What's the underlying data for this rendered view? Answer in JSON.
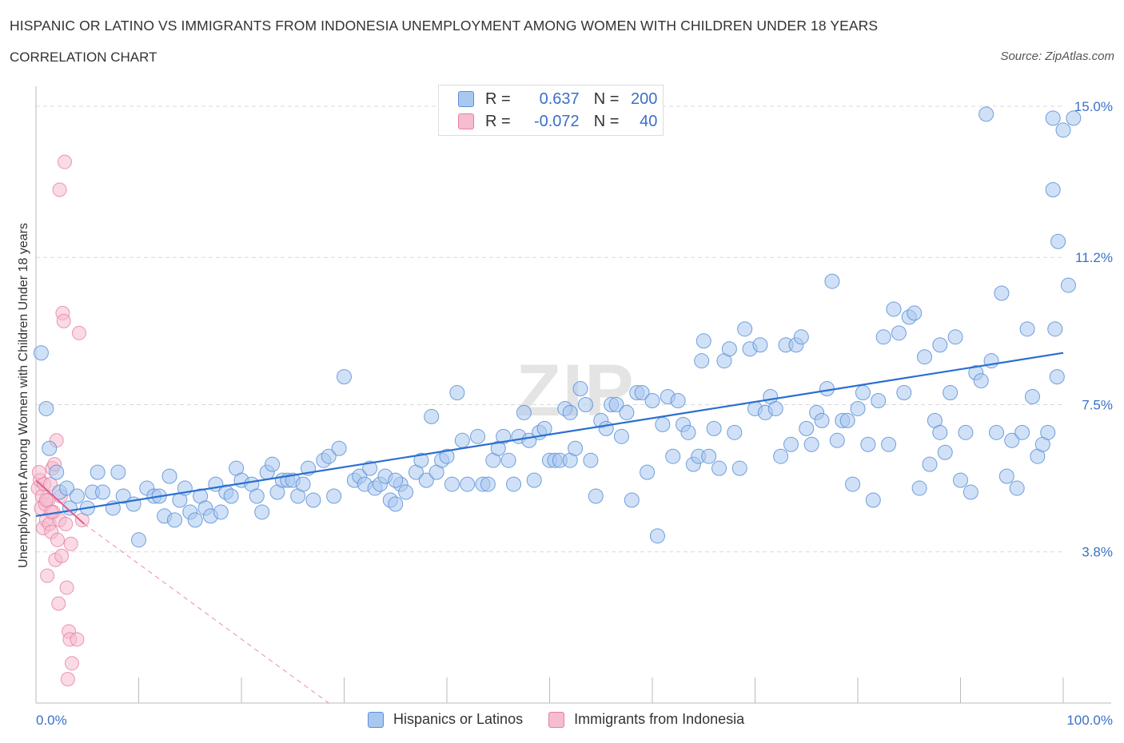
{
  "header": {
    "title": "HISPANIC OR LATINO VS IMMIGRANTS FROM INDONESIA UNEMPLOYMENT AMONG WOMEN WITH CHILDREN UNDER 18 YEARS",
    "subtitle": "CORRELATION CHART",
    "source": "Source: ZipAtlas.com"
  },
  "legend": {
    "rows": [
      {
        "r_label": "R =",
        "r_value": "0.637",
        "n_label": "N =",
        "n_value": "200"
      },
      {
        "r_label": "R =",
        "r_value": "-0.072",
        "n_label": "N =",
        "n_value": "40"
      }
    ]
  },
  "colors": {
    "blue_fill": "#a9c8f0",
    "blue_stroke": "#5b8fd6",
    "blue_line": "#2a6fd0",
    "pink_fill": "#f6bcd0",
    "pink_stroke": "#e57fa0",
    "pink_line": "#e0608a",
    "tick_text": "#3a70c8"
  },
  "chart_data": {
    "type": "scatter",
    "title": "HISPANIC OR LATINO VS IMMIGRANTS FROM INDONESIA UNEMPLOYMENT AMONG WOMEN WITH CHILDREN UNDER 18 YEARS",
    "xlabel": "",
    "ylabel": "Unemployment Among Women with Children Under 18 years",
    "x_tick_labels": [
      "0.0%",
      "100.0%"
    ],
    "y_tick_labels": [
      "3.8%",
      "7.5%",
      "11.2%",
      "15.0%"
    ],
    "y_ticks": [
      3.8,
      7.5,
      11.2,
      15.0
    ],
    "xlim": [
      0,
      100
    ],
    "ylim": [
      0,
      15.3
    ],
    "grid": true,
    "legend_position": "top-center",
    "watermark": "ZIPatlas",
    "series": [
      {
        "name": "Hispanics or Latinos",
        "color": "#a9c8f0",
        "trend": {
          "x": [
            0,
            100
          ],
          "y": [
            4.7,
            8.8
          ]
        },
        "points": [
          [
            0.5,
            8.8
          ],
          [
            1,
            7.4
          ],
          [
            1.3,
            6.4
          ],
          [
            2,
            5.8
          ],
          [
            2.3,
            5.3
          ],
          [
            3,
            5.4
          ],
          [
            3.3,
            4.9
          ],
          [
            4,
            5.2
          ],
          [
            5,
            4.9
          ],
          [
            5.5,
            5.3
          ],
          [
            6,
            5.8
          ],
          [
            6.5,
            5.3
          ],
          [
            7.5,
            4.9
          ],
          [
            8,
            5.8
          ],
          [
            8.5,
            5.2
          ],
          [
            9.5,
            5.0
          ],
          [
            10,
            4.1
          ],
          [
            10.8,
            5.4
          ],
          [
            11.5,
            5.2
          ],
          [
            12,
            5.2
          ],
          [
            12.5,
            4.7
          ],
          [
            13,
            5.7
          ],
          [
            13.5,
            4.6
          ],
          [
            14,
            5.1
          ],
          [
            14.5,
            5.4
          ],
          [
            15,
            4.8
          ],
          [
            15.5,
            4.6
          ],
          [
            16,
            5.2
          ],
          [
            16.5,
            4.9
          ],
          [
            17,
            4.7
          ],
          [
            17.5,
            5.5
          ],
          [
            18,
            4.8
          ],
          [
            18.5,
            5.3
          ],
          [
            19,
            5.2
          ],
          [
            19.5,
            5.9
          ],
          [
            20,
            5.6
          ],
          [
            21,
            5.5
          ],
          [
            21.5,
            5.2
          ],
          [
            22,
            4.8
          ],
          [
            22.5,
            5.8
          ],
          [
            23,
            6.0
          ],
          [
            23.5,
            5.3
          ],
          [
            24,
            5.6
          ],
          [
            24.5,
            5.6
          ],
          [
            25,
            5.6
          ],
          [
            25.5,
            5.2
          ],
          [
            26,
            5.5
          ],
          [
            26.5,
            5.9
          ],
          [
            27,
            5.1
          ],
          [
            28,
            6.1
          ],
          [
            28.5,
            6.2
          ],
          [
            29,
            5.2
          ],
          [
            29.5,
            6.4
          ],
          [
            30,
            8.2
          ],
          [
            31,
            5.6
          ],
          [
            31.5,
            5.7
          ],
          [
            32,
            5.5
          ],
          [
            32.5,
            5.9
          ],
          [
            33,
            5.4
          ],
          [
            33.5,
            5.5
          ],
          [
            34,
            5.7
          ],
          [
            34.5,
            5.1
          ],
          [
            35,
            5.0
          ],
          [
            35.5,
            5.5
          ],
          [
            36,
            5.3
          ],
          [
            37,
            5.8
          ],
          [
            37.5,
            6.1
          ],
          [
            38,
            5.6
          ],
          [
            38.5,
            7.2
          ],
          [
            39,
            5.8
          ],
          [
            39.5,
            6.1
          ],
          [
            40,
            6.2
          ],
          [
            40.5,
            5.5
          ],
          [
            41,
            7.8
          ],
          [
            41.5,
            6.6
          ],
          [
            42,
            5.5
          ],
          [
            43,
            6.7
          ],
          [
            43.5,
            5.5
          ],
          [
            44,
            5.5
          ],
          [
            44.5,
            6.1
          ],
          [
            45,
            6.4
          ],
          [
            45.5,
            6.7
          ],
          [
            46,
            6.1
          ],
          [
            46.5,
            5.5
          ],
          [
            47,
            6.7
          ],
          [
            47.5,
            7.3
          ],
          [
            48,
            6.6
          ],
          [
            48.5,
            5.6
          ],
          [
            49,
            6.8
          ],
          [
            49.5,
            6.9
          ],
          [
            50,
            6.1
          ],
          [
            50.5,
            6.1
          ],
          [
            51,
            6.1
          ],
          [
            51.5,
            7.4
          ],
          [
            52,
            6.1
          ],
          [
            52.5,
            6.4
          ],
          [
            53,
            7.9
          ],
          [
            53.5,
            7.5
          ],
          [
            54,
            6.1
          ],
          [
            54.5,
            5.2
          ],
          [
            55,
            7.1
          ],
          [
            55.5,
            6.9
          ],
          [
            56,
            7.5
          ],
          [
            56.5,
            7.5
          ],
          [
            57,
            6.7
          ],
          [
            57.5,
            7.3
          ],
          [
            58,
            5.1
          ],
          [
            58.5,
            7.8
          ],
          [
            59,
            7.8
          ],
          [
            59.5,
            5.8
          ],
          [
            60,
            7.6
          ],
          [
            60.5,
            4.2
          ],
          [
            61,
            7.0
          ],
          [
            61.5,
            7.7
          ],
          [
            62,
            6.2
          ],
          [
            62.5,
            7.6
          ],
          [
            63,
            7.0
          ],
          [
            63.5,
            6.8
          ],
          [
            64,
            6.0
          ],
          [
            64.5,
            6.2
          ],
          [
            64.8,
            8.6
          ],
          [
            65,
            9.1
          ],
          [
            65.5,
            6.2
          ],
          [
            66,
            6.9
          ],
          [
            66.5,
            5.9
          ],
          [
            67,
            8.6
          ],
          [
            67.5,
            8.9
          ],
          [
            68,
            6.8
          ],
          [
            68.5,
            5.9
          ],
          [
            69,
            9.4
          ],
          [
            69.5,
            8.9
          ],
          [
            70,
            7.4
          ],
          [
            70.5,
            9.0
          ],
          [
            71,
            7.3
          ],
          [
            71.5,
            7.7
          ],
          [
            72,
            7.4
          ],
          [
            72.5,
            6.2
          ],
          [
            73,
            9.0
          ],
          [
            73.5,
            6.5
          ],
          [
            74,
            9.0
          ],
          [
            74.5,
            9.2
          ],
          [
            75,
            6.9
          ],
          [
            75.5,
            6.5
          ],
          [
            76,
            7.3
          ],
          [
            76.5,
            7.1
          ],
          [
            77,
            7.9
          ],
          [
            77.5,
            10.6
          ],
          [
            78,
            6.6
          ],
          [
            78.5,
            7.1
          ],
          [
            79,
            7.1
          ],
          [
            79.5,
            5.5
          ],
          [
            80,
            7.4
          ],
          [
            80.5,
            7.8
          ],
          [
            81,
            6.5
          ],
          [
            81.5,
            5.1
          ],
          [
            82,
            7.6
          ],
          [
            82.5,
            9.2
          ],
          [
            83,
            6.5
          ],
          [
            83.5,
            9.9
          ],
          [
            84,
            9.3
          ],
          [
            84.5,
            7.8
          ],
          [
            85,
            9.7
          ],
          [
            85.5,
            9.8
          ],
          [
            86,
            5.4
          ],
          [
            86.5,
            8.7
          ],
          [
            87,
            6.0
          ],
          [
            87.5,
            7.1
          ],
          [
            88,
            9.0
          ],
          [
            88.5,
            6.3
          ],
          [
            89,
            7.8
          ],
          [
            89.5,
            9.2
          ],
          [
            90,
            5.6
          ],
          [
            90.5,
            6.8
          ],
          [
            91,
            5.3
          ],
          [
            91.5,
            8.3
          ],
          [
            92,
            8.1
          ],
          [
            92.5,
            14.8
          ],
          [
            93,
            8.6
          ],
          [
            93.5,
            6.8
          ],
          [
            94,
            10.3
          ],
          [
            94.5,
            5.7
          ],
          [
            95,
            6.6
          ],
          [
            95.5,
            5.4
          ],
          [
            96,
            6.8
          ],
          [
            96.5,
            9.4
          ],
          [
            97,
            7.7
          ],
          [
            97.5,
            6.2
          ],
          [
            98,
            6.5
          ],
          [
            98.5,
            6.8
          ],
          [
            99,
            14.7
          ],
          [
            99.5,
            11.6
          ],
          [
            99,
            12.9
          ],
          [
            99.2,
            9.4
          ],
          [
            99.4,
            8.2
          ],
          [
            100,
            14.4
          ],
          [
            100.5,
            10.5
          ],
          [
            101,
            14.7
          ],
          [
            88,
            6.8
          ],
          [
            52,
            7.3
          ],
          [
            35,
            5.6
          ]
        ]
      },
      {
        "name": "Immigrants from Indonesia",
        "color": "#f6bcd0",
        "trend": {
          "x": [
            0,
            4.7
          ],
          "y": [
            5.6,
            4.5
          ]
        },
        "trend_dashed": {
          "x": [
            4.7,
            28.5
          ],
          "y": [
            4.5,
            0.0
          ]
        },
        "points": [
          [
            0.2,
            5.4
          ],
          [
            0.4,
            5.6
          ],
          [
            0.5,
            4.9
          ],
          [
            0.6,
            5.2
          ],
          [
            0.7,
            4.4
          ],
          [
            0.8,
            5.5
          ],
          [
            0.9,
            5.0
          ],
          [
            1.0,
            4.6
          ],
          [
            1.1,
            3.2
          ],
          [
            1.2,
            5.1
          ],
          [
            1.3,
            4.5
          ],
          [
            1.4,
            5.5
          ],
          [
            1.5,
            4.3
          ],
          [
            1.6,
            5.9
          ],
          [
            1.7,
            4.8
          ],
          [
            1.8,
            6.0
          ],
          [
            1.9,
            3.6
          ],
          [
            2.0,
            6.6
          ],
          [
            2.1,
            4.1
          ],
          [
            2.2,
            2.5
          ],
          [
            2.3,
            4.6
          ],
          [
            2.4,
            5.2
          ],
          [
            2.5,
            3.7
          ],
          [
            2.6,
            9.8
          ],
          [
            2.7,
            9.6
          ],
          [
            2.8,
            13.6
          ],
          [
            2.9,
            4.5
          ],
          [
            3.0,
            2.9
          ],
          [
            3.1,
            0.6
          ],
          [
            3.2,
            1.8
          ],
          [
            3.3,
            1.6
          ],
          [
            3.4,
            4.0
          ],
          [
            1.5,
            4.8
          ],
          [
            1.0,
            5.1
          ],
          [
            2.3,
            12.9
          ],
          [
            3.5,
            1.0
          ],
          [
            4.0,
            1.6
          ],
          [
            4.2,
            9.3
          ],
          [
            4.5,
            4.6
          ],
          [
            0.3,
            5.8
          ]
        ]
      }
    ]
  }
}
